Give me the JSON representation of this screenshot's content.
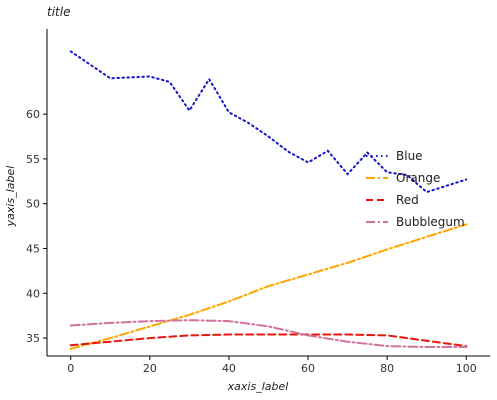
{
  "chart_data": {
    "type": "line",
    "title": "title",
    "xlabel": "xaxis_label",
    "ylabel": "yaxis_label",
    "xlim": [
      -6,
      106
    ],
    "ylim": [
      33,
      69.5
    ],
    "xticks": [
      0,
      20,
      40,
      60,
      80,
      100
    ],
    "yticks": [
      35,
      40,
      45,
      50,
      55,
      60
    ],
    "grid": false,
    "legend": "right",
    "series": [
      {
        "name": "Blue",
        "color": "#1515c8",
        "dash": "dotted",
        "x": [
          0,
          10,
          20,
          25,
          30,
          35,
          40,
          45,
          50,
          55,
          60,
          65,
          70,
          75,
          80,
          85,
          90,
          95,
          100
        ],
        "y": [
          67.0,
          64.0,
          64.2,
          63.6,
          60.4,
          63.9,
          60.2,
          59.0,
          57.5,
          55.8,
          54.6,
          55.9,
          53.3,
          55.7,
          53.5,
          53.2,
          51.3,
          52.0,
          52.7
        ]
      },
      {
        "name": "Orange",
        "color": "#ffa500",
        "dash": "dash-dot",
        "x": [
          0,
          10,
          20,
          30,
          40,
          50,
          60,
          70,
          80,
          90,
          100
        ],
        "y": [
          33.8,
          35.0,
          36.3,
          37.6,
          39.1,
          40.8,
          42.1,
          43.4,
          44.9,
          46.3,
          47.7
        ]
      },
      {
        "name": "Red",
        "color": "#e8170b",
        "dash": "dashed",
        "x": [
          0,
          10,
          20,
          30,
          40,
          50,
          60,
          70,
          80,
          90,
          100
        ],
        "y": [
          34.2,
          34.6,
          35.0,
          35.3,
          35.4,
          35.4,
          35.4,
          35.4,
          35.3,
          34.7,
          34.1
        ]
      },
      {
        "name": "Bubblegum",
        "color": "#d0729e",
        "dash": "dash-dot",
        "x": [
          0,
          10,
          20,
          30,
          40,
          50,
          60,
          70,
          80,
          90,
          100
        ],
        "y": [
          36.4,
          36.7,
          36.9,
          37.0,
          36.9,
          36.3,
          35.3,
          34.6,
          34.1,
          34.0,
          34.0
        ]
      }
    ]
  }
}
